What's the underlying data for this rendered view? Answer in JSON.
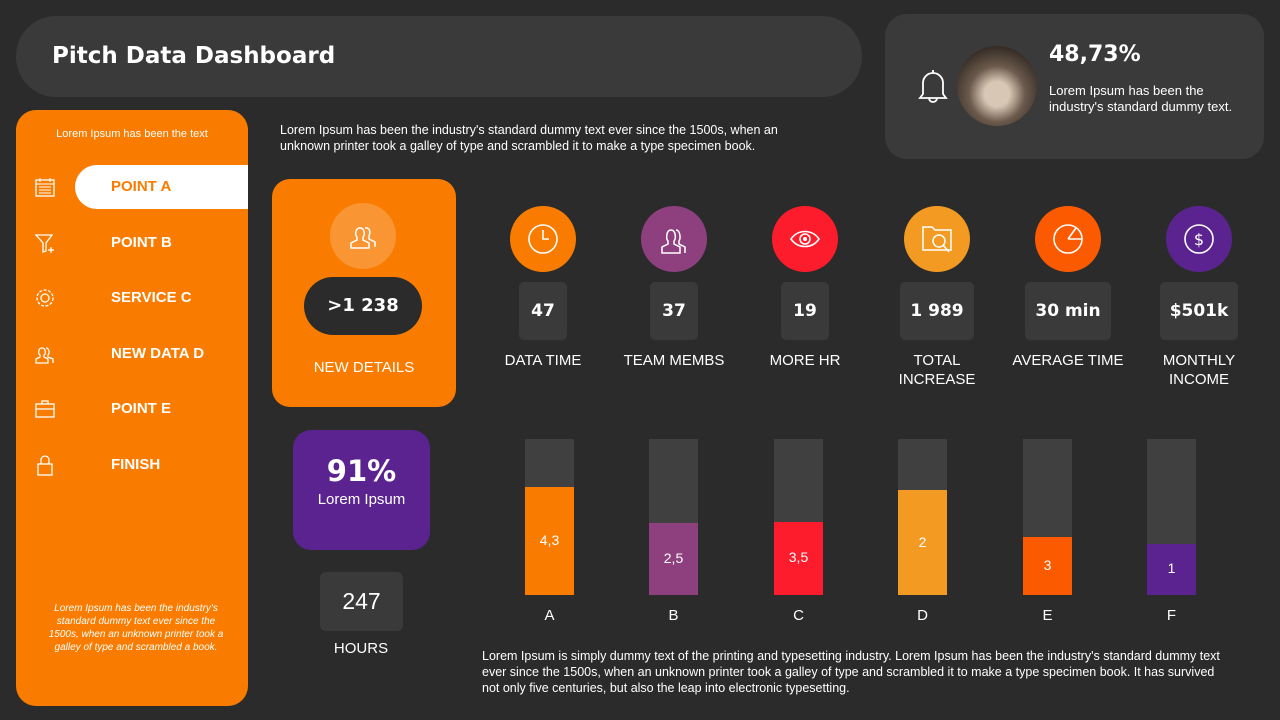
{
  "header": {
    "title": "Pitch Data Dashboard"
  },
  "notification": {
    "icon": "bell-icon",
    "percent": "48,73%",
    "text": "Lorem Ipsum has been the industry's standard dummy text."
  },
  "sidebar": {
    "top_text": "Lorem Ipsum has been the text",
    "footer_text": "Lorem Ipsum has been the industry's standard dummy text ever since the 1500s, when an unknown printer took a galley of type and scrambled a book.",
    "active_index": 0,
    "color": "#f97c00",
    "items": [
      {
        "label": "POINT A",
        "icon": "calendar-icon"
      },
      {
        "label": "POINT B",
        "icon": "funnel-icon"
      },
      {
        "label": "SERVICE C",
        "icon": "gear-icon"
      },
      {
        "label": "NEW DATA D",
        "icon": "users-icon"
      },
      {
        "label": "POINT E",
        "icon": "briefcase-icon"
      },
      {
        "label": "FINISH",
        "icon": "lock-icon"
      }
    ]
  },
  "description": "Lorem Ipsum has been the industry's standard dummy text ever since the 1500s, when an unknown printer took a galley of type and scrambled it to make a type specimen book.",
  "new_details": {
    "value": ">1 238",
    "label": "NEW DETAILS",
    "icon": "users-icon"
  },
  "percent_card": {
    "value": "91%",
    "label": "Lorem Ipsum",
    "color": "#5b2390"
  },
  "hours": {
    "value": "247",
    "label": "HOURS"
  },
  "stats": [
    {
      "icon": "clock-icon",
      "color": "#f97c00",
      "value": "47",
      "label": "DATA TIME"
    },
    {
      "icon": "users-icon",
      "color": "#8e3f7e",
      "value": "37",
      "label": "TEAM MEMBS"
    },
    {
      "icon": "eye-icon",
      "color": "#fc1c2c",
      "value": "19",
      "label": "MORE HR"
    },
    {
      "icon": "folder-search-icon",
      "color": "#f29a22",
      "value": "1 989",
      "label": "TOTAL INCREASE"
    },
    {
      "icon": "pie-chart-icon",
      "color": "#fb5a00",
      "value": "30 min",
      "label": "AVERAGE TIME"
    },
    {
      "icon": "dollar-icon",
      "color": "#5b2390",
      "value": "$501k",
      "label": "MONTHLY INCOME"
    }
  ],
  "chart_data": {
    "type": "bar",
    "categories": [
      "A",
      "B",
      "C",
      "D",
      "E",
      "F"
    ],
    "labels": [
      "4,3",
      "2,5",
      "3,5",
      "2",
      "3",
      "1"
    ],
    "fill_fraction": [
      0.69,
      0.46,
      0.47,
      0.67,
      0.37,
      0.33
    ],
    "colors": [
      "#f97c00",
      "#8e3f7e",
      "#fc1c2c",
      "#f29a22",
      "#fb5a00",
      "#5b2390"
    ],
    "track_color": "#404040"
  },
  "bottom_text": "Lorem Ipsum is simply dummy text of the printing and typesetting industry. Lorem Ipsum has been the industry's standard dummy text ever since the 1500s, when an unknown printer took a galley of type and scrambled it to make a type specimen book. It has survived not only five centuries, but also the leap into electronic typesetting."
}
